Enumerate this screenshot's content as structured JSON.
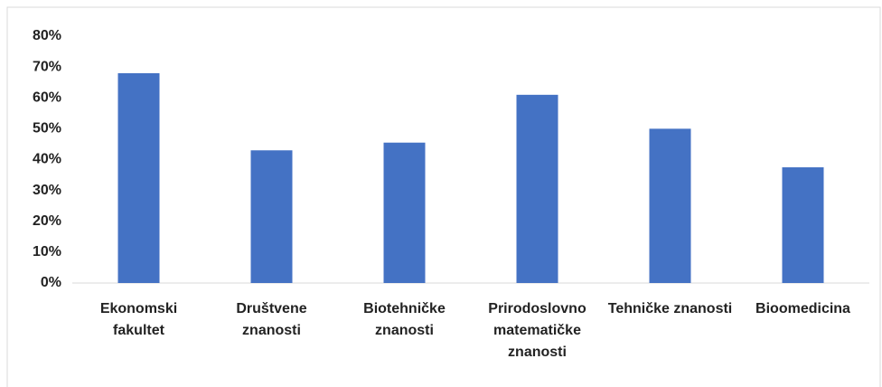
{
  "chart_data": {
    "type": "bar",
    "categories": [
      "Ekonomski fakultet",
      "Društvene znanosti",
      "Biotehničke znanosti",
      "Prirodoslovno matematičke znanosti",
      "Tehničke znanosti",
      "Bioomedicina"
    ],
    "values": [
      68,
      43,
      45.5,
      61,
      50,
      37.5
    ],
    "color": "#4472c4",
    "ylim": [
      0,
      80
    ],
    "yticks": [
      {
        "value": 0,
        "label": "0%"
      },
      {
        "value": 10,
        "label": "10%"
      },
      {
        "value": 20,
        "label": "20%"
      },
      {
        "value": 30,
        "label": "30%"
      },
      {
        "value": 40,
        "label": "40%"
      },
      {
        "value": 50,
        "label": "50%"
      },
      {
        "value": 60,
        "label": "60%"
      },
      {
        "value": 70,
        "label": "70%"
      },
      {
        "value": 80,
        "label": "80%"
      }
    ],
    "grid": false
  }
}
